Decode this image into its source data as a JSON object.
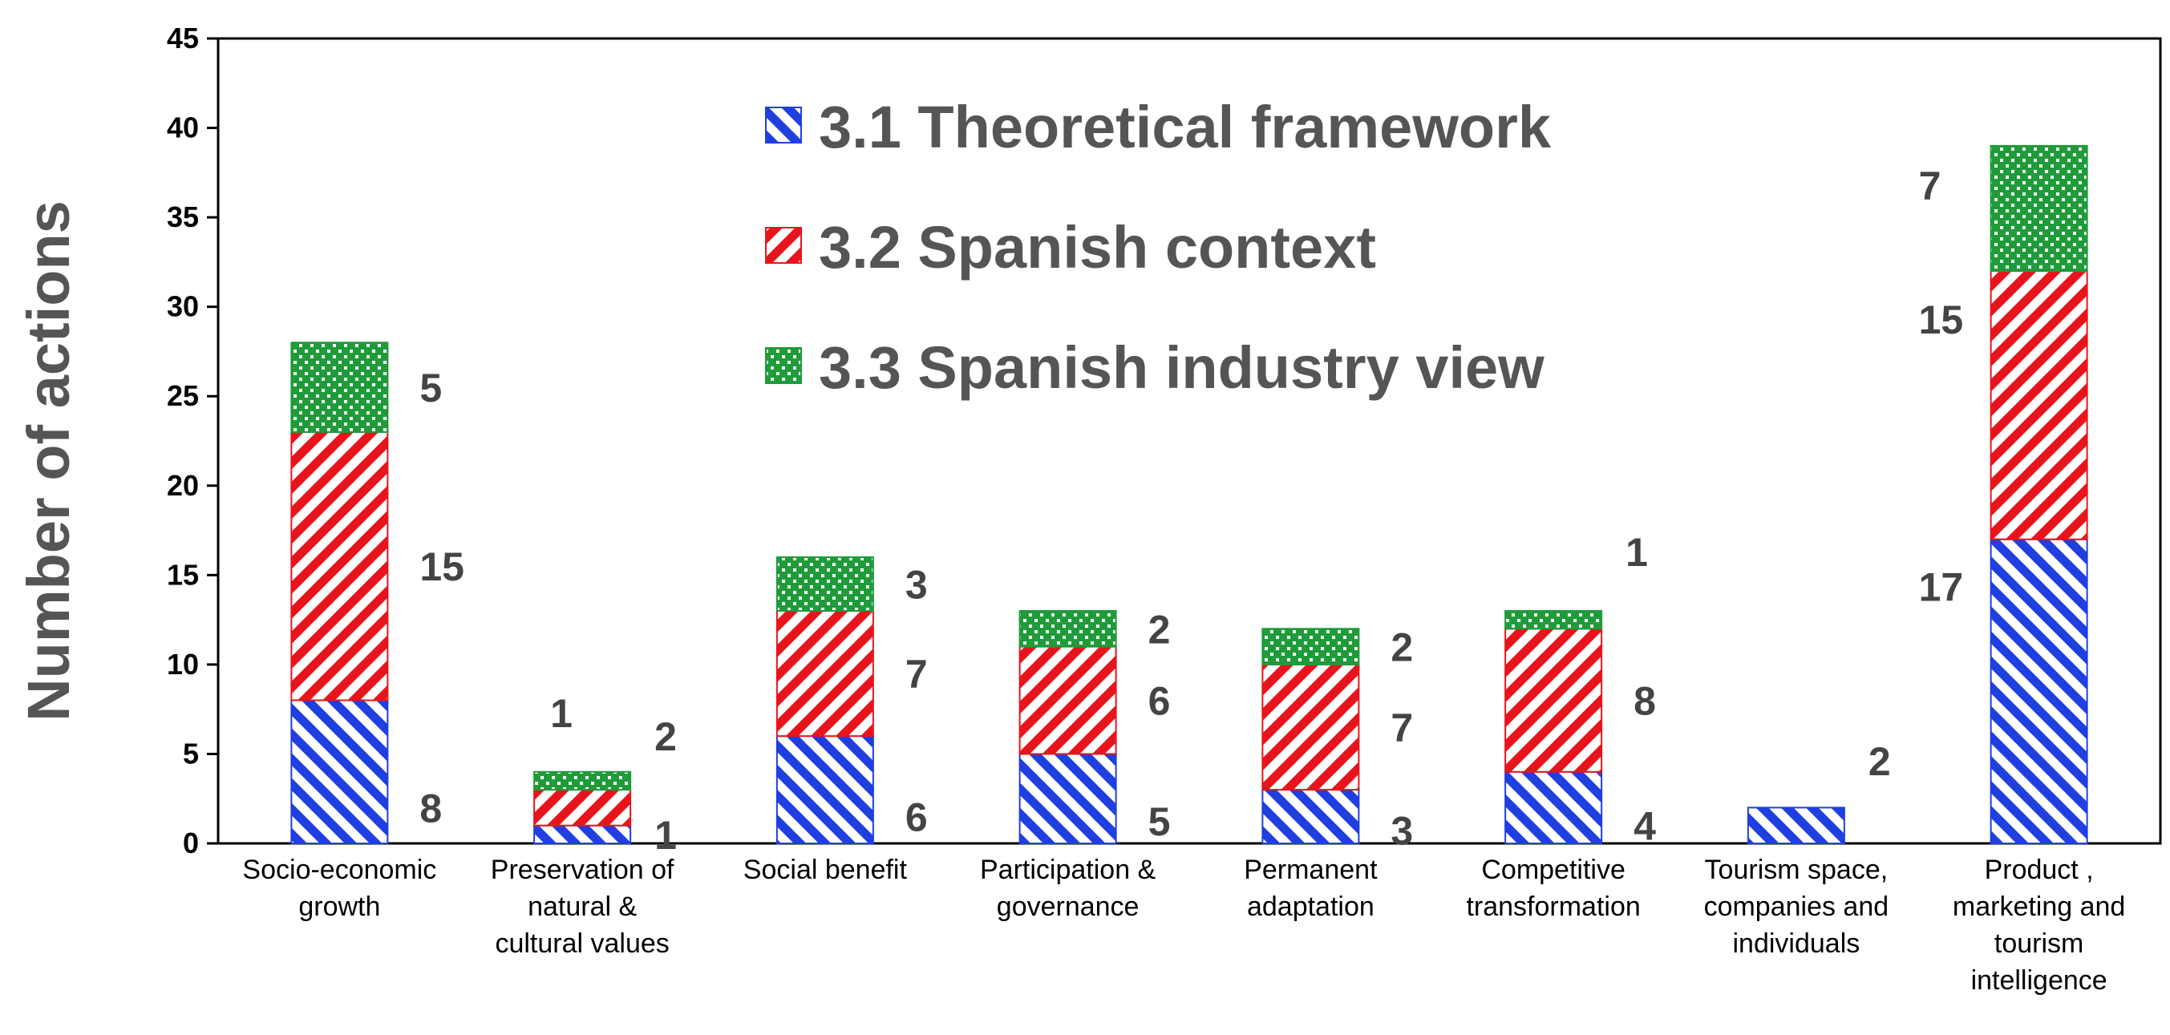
{
  "chart_data": {
    "type": "bar",
    "stacked": true,
    "title": "",
    "xlabel": "",
    "ylabel": "Number of actions",
    "ylim": [
      0,
      45
    ],
    "yticks": [
      0,
      5,
      10,
      15,
      20,
      25,
      30,
      35,
      40,
      45
    ],
    "grid": false,
    "legend_position": "top-center",
    "categories": [
      [
        "Socio-economic",
        "growth"
      ],
      [
        "Preservation of",
        "natural &",
        "cultural values"
      ],
      [
        "Social benefit"
      ],
      [
        "Participation &",
        "governance"
      ],
      [
        "Permanent",
        "adaptation"
      ],
      [
        "Competitive",
        "transformation"
      ],
      [
        "Tourism space,",
        "companies and",
        "individuals"
      ],
      [
        "Product ,",
        "marketing and",
        "tourism",
        "intelligence"
      ]
    ],
    "series": [
      {
        "name": "3.1 Theoretical framework",
        "color": "#1f3fe0",
        "pattern": "diagonal-stripes",
        "values": [
          8,
          1,
          6,
          5,
          3,
          4,
          2,
          17
        ]
      },
      {
        "name": "3.2 Spanish context",
        "color": "#e8141c",
        "pattern": "diagonal-stripes",
        "values": [
          15,
          2,
          7,
          6,
          7,
          8,
          0,
          15
        ]
      },
      {
        "name": "3.3 Spanish industry view",
        "color": "#1f9b3a",
        "pattern": "checker-dots",
        "values": [
          5,
          1,
          3,
          2,
          2,
          1,
          0,
          7
        ]
      }
    ]
  }
}
